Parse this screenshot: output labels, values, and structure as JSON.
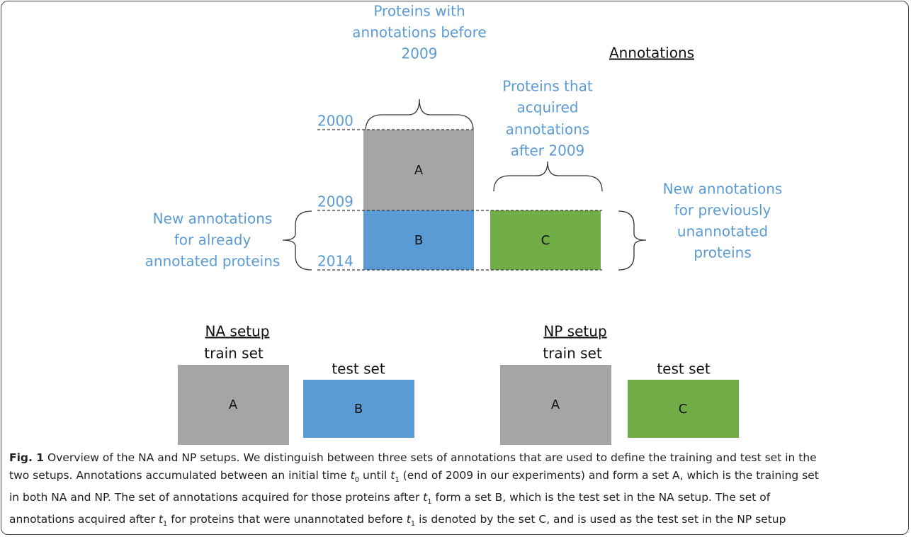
{
  "header": {
    "title": "Annotations"
  },
  "timeline": {
    "years": [
      "2000",
      "2009",
      "2014"
    ]
  },
  "labels": {
    "top_left": [
      "Proteins with",
      "annotations before",
      "2009"
    ],
    "top_right": [
      "Proteins that",
      "acquired",
      "annotations",
      "after 2009"
    ],
    "left": [
      "New annotations",
      "for already",
      "annotated proteins"
    ],
    "right": [
      "New annotations",
      "for previously",
      "unannotated",
      "proteins"
    ]
  },
  "sets": {
    "a": "A",
    "b": "B",
    "c": "C"
  },
  "setups": [
    {
      "title": "NA setup",
      "train_label": "train set",
      "test_label": "test set"
    },
    {
      "title": "NP setup",
      "train_label": "train set",
      "test_label": "test set"
    }
  ],
  "caption": {
    "label": "Fig. 1",
    "lines": [
      [
        " Overview of the NA and NP setups. We distinguish between three sets of annotations that are used to define the training and test set in the"
      ],
      [
        "two setups. Annotations accumulated between an initial time ",
        "t",
        "0",
        " until ",
        "t",
        "1",
        " (end of 2009 in our experiments) and form a set A, which is the training set"
      ],
      [
        "in both NA and NP. The set of annotations acquired for those proteins after ",
        "t",
        "1",
        " form a set B, which is the test set in the NA setup. The set of"
      ],
      [
        "annotations acquired after ",
        "t",
        "1",
        " for proteins that were unannotated before ",
        "t",
        "1",
        " is denoted by the set C, and is used as the test set in the NP setup"
      ]
    ]
  }
}
